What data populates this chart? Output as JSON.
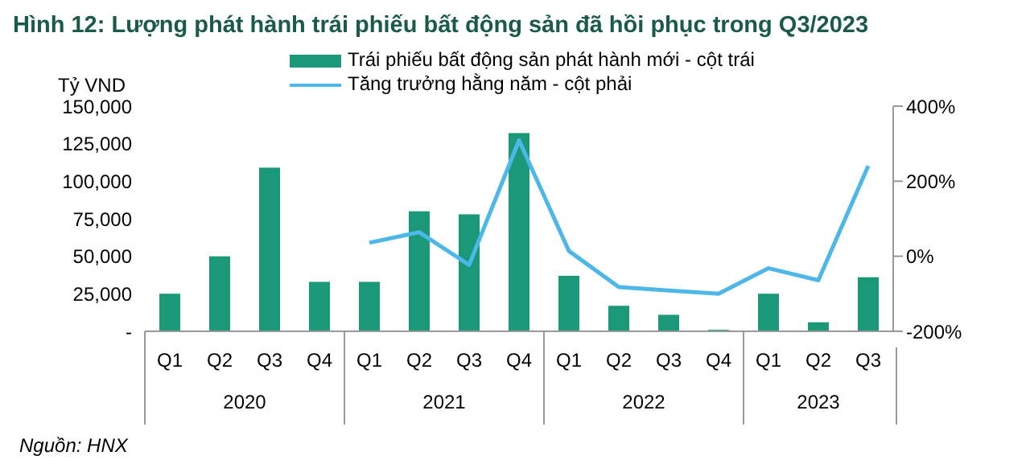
{
  "chart_data": {
    "type": "bar",
    "title": "Hình 12: Lượng phát hành trái phiếu bất động sản đã hồi phục trong Q3/2023",
    "ylabel": "Tỷ VND",
    "categories": [
      "Q1",
      "Q2",
      "Q3",
      "Q4",
      "Q1",
      "Q2",
      "Q3",
      "Q4",
      "Q1",
      "Q2",
      "Q3",
      "Q4",
      "Q1",
      "Q2",
      "Q3"
    ],
    "series": [
      {
        "name": "Trái phiếu bất động sản phát hành mới - cột trái",
        "color": "#1a9878",
        "values": [
          25000,
          50000,
          109000,
          33000,
          33000,
          80000,
          78000,
          132000,
          37000,
          17000,
          11000,
          1000,
          25000,
          6000,
          36000
        ]
      },
      {
        "name": "Tăng trưởng hằng năm - cột phải",
        "type": "line",
        "axis": "y2",
        "color": "#4db8e8",
        "values": [
          null,
          null,
          null,
          null,
          36,
          64,
          -23,
          309,
          14,
          -82,
          -91,
          -100,
          -32,
          -64,
          241
        ]
      }
    ],
    "ylim": [
      0,
      150000
    ],
    "yticks": [
      {
        "value": 0,
        "label": "-"
      },
      {
        "value": 25000,
        "label": "25,000"
      },
      {
        "value": 50000,
        "label": "50,000"
      },
      {
        "value": 75000,
        "label": "75,000"
      },
      {
        "value": 100000,
        "label": "100,000"
      },
      {
        "value": 125000,
        "label": "125,000"
      },
      {
        "value": 150000,
        "label": "150,000"
      }
    ],
    "y2lim": [
      -200,
      400
    ],
    "y2ticks": [
      {
        "value": -200,
        "label": "-200%"
      },
      {
        "value": 0,
        "label": "0%"
      },
      {
        "value": 200,
        "label": "200%"
      },
      {
        "value": 400,
        "label": "400%"
      }
    ],
    "grid": false,
    "legend": "top",
    "marker": "none",
    "annotations": [
      "2020",
      "2021",
      "2022",
      "2023",
      "Nguồn: HNX"
    ]
  }
}
